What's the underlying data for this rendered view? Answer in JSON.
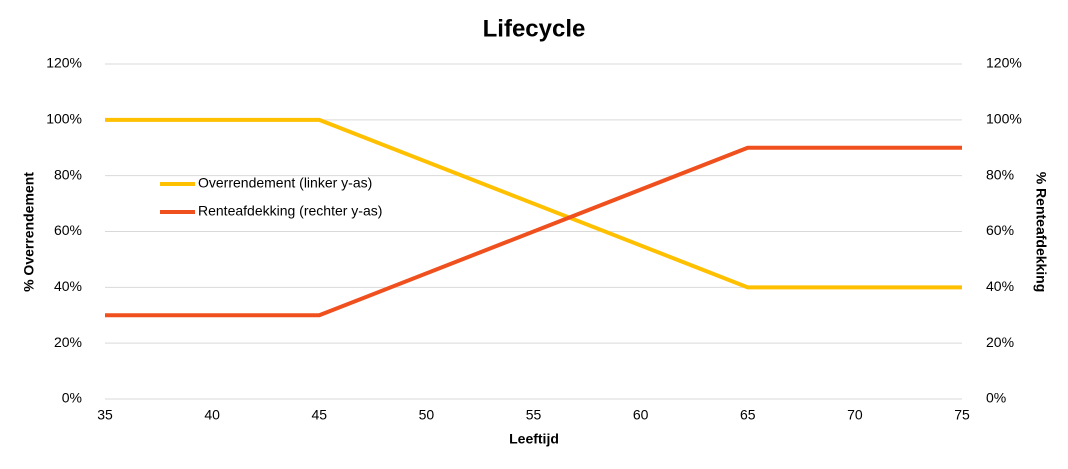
{
  "chart_data": {
    "type": "line",
    "title": "Lifecycle",
    "x_label": "Leeftijd",
    "y_label": "% Overrendement",
    "y2_label": "% Renteafdekking",
    "x": [
      35,
      45,
      65,
      75
    ],
    "series": [
      {
        "name": "Overrendement (linker y-as)",
        "color": "#ffc000",
        "values": [
          100,
          100,
          40,
          40
        ]
      },
      {
        "name": "Renteafdekking (rechter y-as)",
        "color": "#f0501e",
        "values": [
          30,
          30,
          90,
          90
        ],
        "axis": "y2"
      }
    ],
    "xlim": [
      35,
      75
    ],
    "xticks": [
      35,
      40,
      45,
      50,
      55,
      60,
      65,
      70,
      75
    ],
    "ylim": [
      0,
      120
    ],
    "yticks": [
      {
        "value": 0,
        "label": "0%"
      },
      {
        "value": 20,
        "label": "20%"
      },
      {
        "value": 40,
        "label": "40%"
      },
      {
        "value": 60,
        "label": "60%"
      },
      {
        "value": 80,
        "label": "80%"
      },
      {
        "value": 100,
        "label": "100%"
      },
      {
        "value": 120,
        "label": "120%"
      }
    ],
    "y2lim": [
      0,
      120
    ],
    "y2ticks": [
      {
        "value": 0,
        "label": "0%"
      },
      {
        "value": 20,
        "label": "20%"
      },
      {
        "value": 40,
        "label": "40%"
      },
      {
        "value": 60,
        "label": "60%"
      },
      {
        "value": 80,
        "label": "80%"
      },
      {
        "value": 100,
        "label": "100%"
      },
      {
        "value": 120,
        "label": "120%"
      }
    ],
    "grid": true,
    "legend": "upper left"
  }
}
